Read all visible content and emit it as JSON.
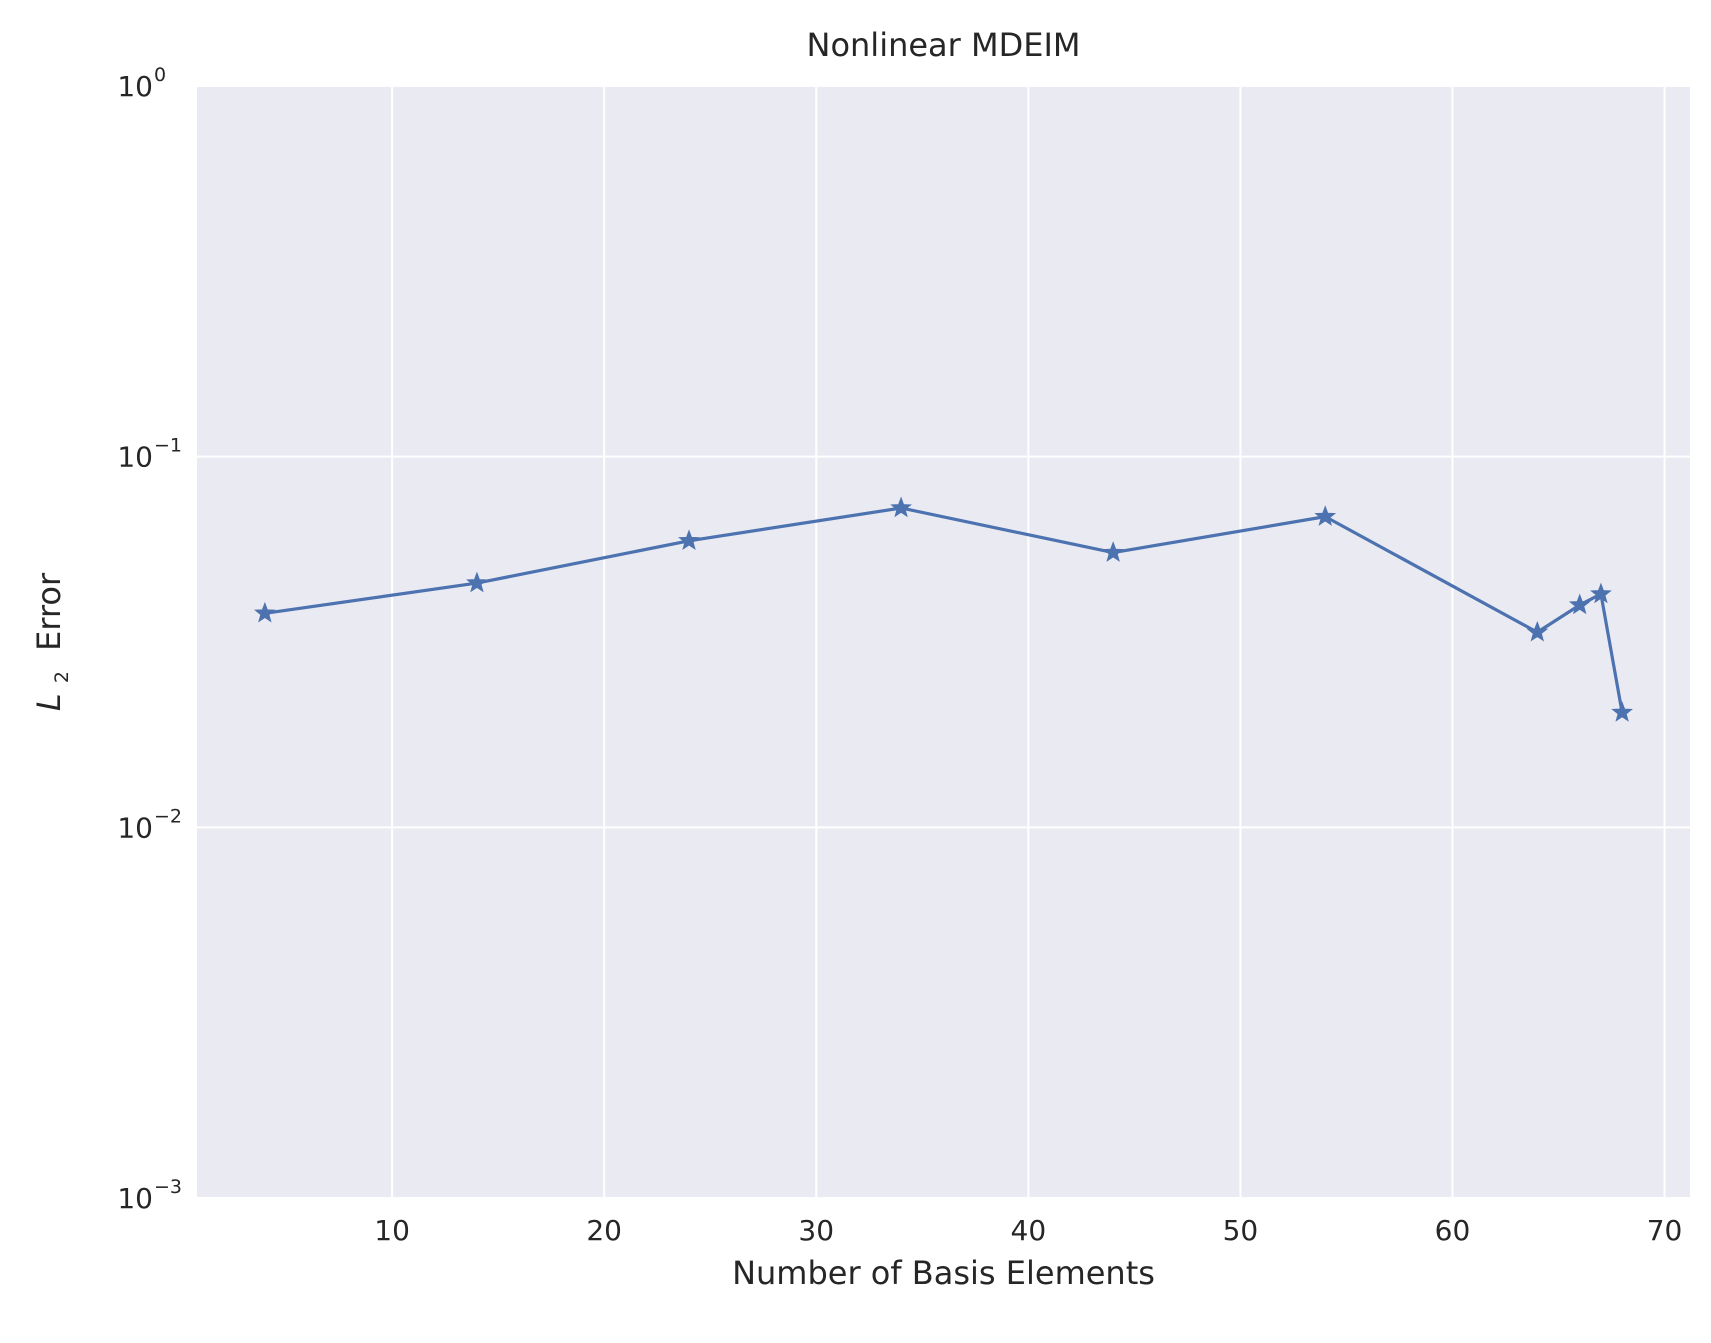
{
  "chart_data": {
    "type": "line",
    "title": "Nonlinear MDEIM",
    "xlabel": "Number of Basis Elements",
    "ylabel": {
      "symbol": "L",
      "subscript": "2",
      "text": "Error"
    },
    "yscale": "log",
    "xlim": [
      0.8,
      71.2
    ],
    "ylim": [
      0.001,
      1
    ],
    "grid": true,
    "legend": "none",
    "x_ticks": [
      {
        "value": 10,
        "label": "10"
      },
      {
        "value": 20,
        "label": "20"
      },
      {
        "value": 30,
        "label": "30"
      },
      {
        "value": 40,
        "label": "40"
      },
      {
        "value": 50,
        "label": "50"
      },
      {
        "value": 60,
        "label": "60"
      },
      {
        "value": 70,
        "label": "70"
      }
    ],
    "y_ticks": [
      {
        "value": 1,
        "base": "10",
        "exponent": "0"
      },
      {
        "value": 0.1,
        "base": "10",
        "exponent": "−1"
      },
      {
        "value": 0.01,
        "base": "10",
        "exponent": "−2"
      },
      {
        "value": 0.001,
        "base": "10",
        "exponent": "−3"
      }
    ],
    "series": [
      {
        "marker": "star",
        "color": "#4c72b0",
        "x": [
          4,
          14,
          24,
          34,
          44,
          54,
          64,
          66,
          67,
          68
        ],
        "y": [
          0.0378,
          0.0456,
          0.0593,
          0.0727,
          0.0551,
          0.0689,
          0.0336,
          0.0398,
          0.0426,
          0.0204
        ]
      }
    ],
    "colors": {
      "plot_background": "#eaeaf2",
      "grid": "#ffffff",
      "text": "#262626"
    }
  }
}
